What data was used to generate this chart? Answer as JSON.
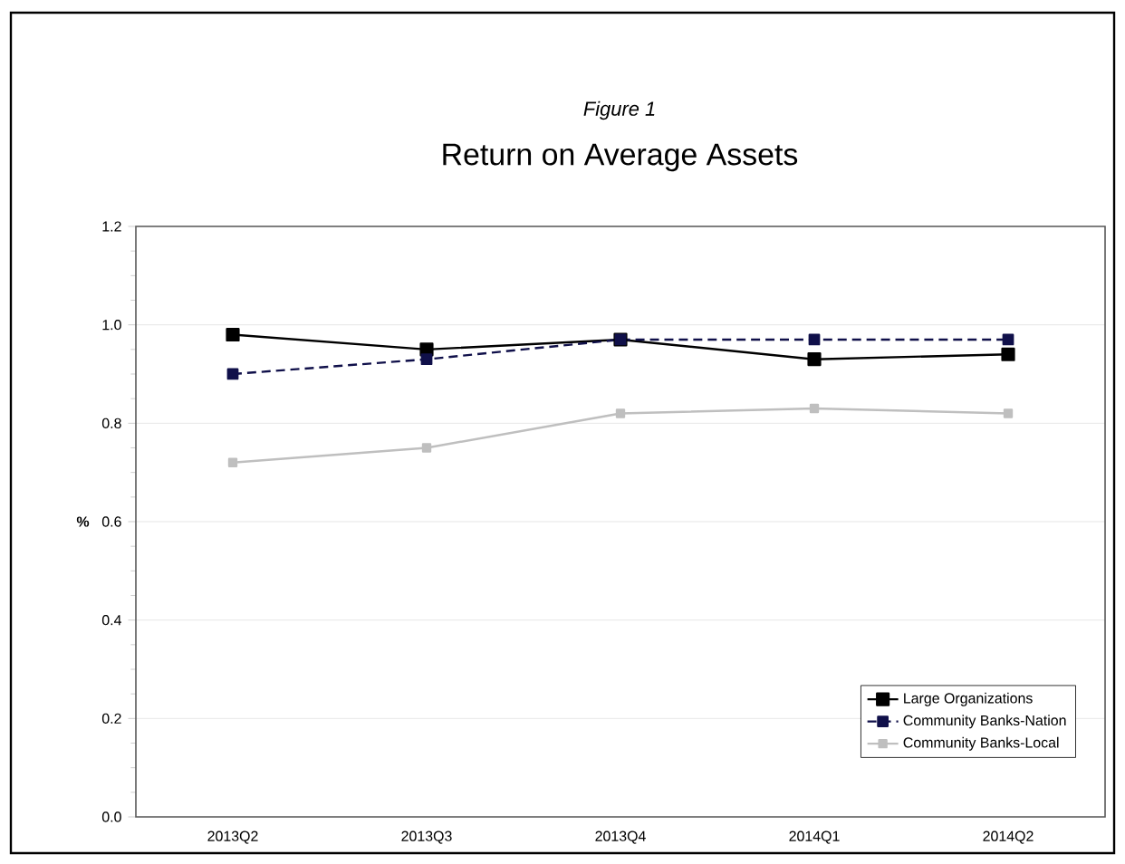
{
  "chart_data": {
    "type": "line",
    "subtitle": "Figure 1",
    "title": "Return on Average Assets",
    "ylabel": "%",
    "categories": [
      "2013Q2",
      "2013Q3",
      "2013Q4",
      "2014Q1",
      "2014Q2"
    ],
    "series": [
      {
        "name": "Large Organizations",
        "color": "#000000",
        "line_style": "solid",
        "values": [
          0.98,
          0.95,
          0.97,
          0.93,
          0.94
        ]
      },
      {
        "name": "Community Banks-Nation",
        "color": "#10104a",
        "line_style": "dashed",
        "values": [
          0.9,
          0.93,
          0.97,
          0.97,
          0.97
        ]
      },
      {
        "name": "Community Banks-Local",
        "color": "#bfbfbf",
        "line_style": "solid",
        "values": [
          0.72,
          0.75,
          0.82,
          0.83,
          0.82
        ]
      }
    ],
    "ylim": [
      0,
      1.2
    ],
    "yticks": [
      {
        "value": 0,
        "label": "0.0"
      },
      {
        "value": 0.2,
        "label": "0.2"
      },
      {
        "value": 0.4,
        "label": "0.4"
      },
      {
        "value": 0.6,
        "label": "0.6"
      },
      {
        "value": 0.8,
        "label": "0.8"
      },
      {
        "value": 1.0,
        "label": "1.0"
      },
      {
        "value": 1.2,
        "label": "1.2"
      }
    ],
    "grid": "y",
    "legend": "bottom right",
    "marker": "square"
  }
}
